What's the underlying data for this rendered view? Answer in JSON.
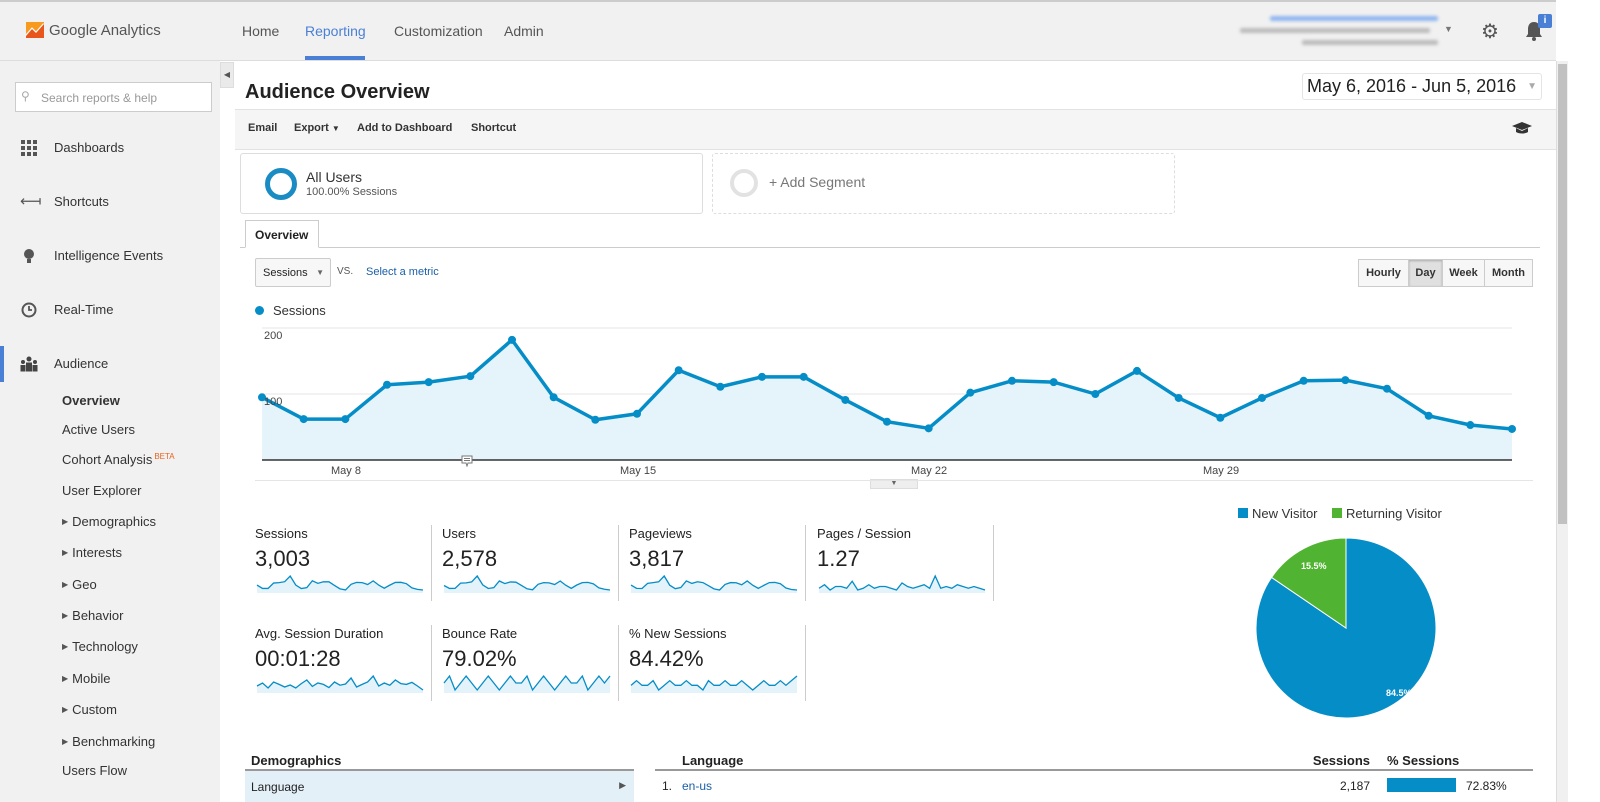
{
  "brand": {
    "name": "Google Analytics"
  },
  "nav": {
    "items": [
      "Home",
      "Reporting",
      "Customization",
      "Admin"
    ],
    "active": "Reporting",
    "accent": "#4a7fd6"
  },
  "header_icons": {
    "settings": "gear-icon",
    "notifications": "bell-icon",
    "badge": "i"
  },
  "sidebar": {
    "search_placeholder": "Search reports & help",
    "items": [
      {
        "label": "Dashboards",
        "icon": "grid-icon"
      },
      {
        "label": "Shortcuts",
        "icon": "shortcut-arrow-icon"
      },
      {
        "label": "Intelligence Events",
        "icon": "lightbulb-icon"
      },
      {
        "label": "Real-Time",
        "icon": "clock-icon"
      },
      {
        "label": "Audience",
        "icon": "people-icon"
      }
    ],
    "sub_items": [
      {
        "label": "Overview",
        "active": true
      },
      {
        "label": "Active Users"
      },
      {
        "label": "Cohort Analysis",
        "badge": "BETA"
      },
      {
        "label": "User Explorer"
      },
      {
        "label": "Demographics",
        "expandable": true
      },
      {
        "label": "Interests",
        "expandable": true
      },
      {
        "label": "Geo",
        "expandable": true
      },
      {
        "label": "Behavior",
        "expandable": true
      },
      {
        "label": "Technology",
        "expandable": true
      },
      {
        "label": "Mobile",
        "expandable": true
      },
      {
        "label": "Custom",
        "expandable": true
      },
      {
        "label": "Benchmarking",
        "expandable": true
      },
      {
        "label": "Users Flow"
      }
    ]
  },
  "page": {
    "title": "Audience Overview",
    "date_range": "May 6, 2016 - Jun 5, 2016"
  },
  "toolbar": {
    "email": "Email",
    "export": "Export",
    "add_to_dashboard": "Add to Dashboard",
    "shortcut": "Shortcut"
  },
  "segments": {
    "all_users": "All Users",
    "all_users_sub": "100.00% Sessions",
    "add": "+ Add Segment"
  },
  "tabs": {
    "overview": "Overview"
  },
  "chart_controls": {
    "metric": "Sessions",
    "vs": "VS.",
    "select_metric": "Select a metric",
    "granularity": [
      "Hourly",
      "Day",
      "Week",
      "Month"
    ],
    "selected": "Day"
  },
  "chart_data": {
    "type": "area",
    "series": [
      {
        "name": "Sessions",
        "color": "#058dc7",
        "values": [
          95,
          62,
          62,
          114,
          118,
          127,
          182,
          95,
          61,
          70,
          136,
          111,
          126,
          126,
          91,
          58,
          48,
          102,
          120,
          118,
          100,
          135,
          94,
          64,
          94,
          120,
          121,
          108,
          67,
          53,
          47
        ]
      }
    ],
    "x_start": "May 6",
    "x_end": "Jun 5",
    "x_ticks": [
      "May 8",
      "May 15",
      "May 22",
      "May 29"
    ],
    "y_ticks": [
      "100",
      "200"
    ],
    "ylim": [
      0,
      200
    ],
    "grid": true,
    "legend": "top-left"
  },
  "metrics": [
    {
      "label": "Sessions",
      "value": "3,003",
      "spark": [
        95,
        62,
        62,
        114,
        118,
        127,
        182,
        95,
        61,
        70,
        136,
        111,
        126,
        126,
        91,
        58,
        48,
        102,
        120,
        118,
        100,
        135,
        94,
        64,
        94,
        120,
        121,
        108,
        67,
        53,
        47
      ]
    },
    {
      "label": "Users",
      "value": "2,578",
      "spark": [
        80,
        55,
        56,
        100,
        102,
        110,
        160,
        85,
        55,
        62,
        118,
        96,
        110,
        108,
        80,
        52,
        44,
        90,
        104,
        102,
        88,
        118,
        82,
        56,
        84,
        104,
        106,
        94,
        60,
        48,
        42
      ]
    },
    {
      "label": "Pageviews",
      "value": "3,817",
      "spark": [
        120,
        80,
        78,
        140,
        150,
        160,
        230,
        118,
        76,
        90,
        170,
        140,
        160,
        150,
        112,
        74,
        60,
        128,
        150,
        148,
        124,
        170,
        118,
        80,
        116,
        150,
        152,
        136,
        84,
        66,
        60
      ]
    },
    {
      "label": "Pages / Session",
      "value": "1.27",
      "spark": [
        1.26,
        1.28,
        1.25,
        1.27,
        1.27,
        1.26,
        1.3,
        1.25,
        1.26,
        1.28,
        1.26,
        1.27,
        1.27,
        1.26,
        1.25,
        1.29,
        1.27,
        1.26,
        1.27,
        1.28,
        1.26,
        1.33,
        1.26,
        1.27,
        1.26,
        1.28,
        1.27,
        1.26,
        1.27,
        1.26,
        1.25
      ]
    },
    {
      "label": "Avg. Session Duration",
      "value": "00:01:28",
      "spark": [
        80,
        95,
        70,
        100,
        88,
        75,
        85,
        70,
        92,
        110,
        78,
        95,
        88,
        72,
        100,
        84,
        90,
        120,
        75,
        88,
        100,
        130,
        80,
        95,
        84,
        110,
        92,
        88,
        98,
        80,
        60
      ]
    },
    {
      "label": "Bounce Rate",
      "value": "79.02%",
      "spark": [
        79,
        80,
        78,
        79,
        80,
        79,
        78,
        79,
        80,
        79,
        78,
        79,
        80,
        79,
        79,
        80,
        78,
        79,
        80,
        79,
        78,
        79,
        80,
        79,
        79,
        80,
        78,
        79,
        80,
        79,
        80
      ]
    },
    {
      "label": "% New Sessions",
      "value": "84.42%",
      "spark": [
        84,
        85,
        84,
        84,
        85,
        83,
        84,
        85,
        84,
        84,
        85,
        84,
        84,
        83,
        85,
        84,
        84,
        85,
        84,
        84,
        85,
        84,
        83,
        84,
        85,
        84,
        84,
        85,
        84,
        85,
        86
      ]
    }
  ],
  "pie": {
    "legend": [
      {
        "label": "New Visitor",
        "color": "#058dc7"
      },
      {
        "label": "Returning Visitor",
        "color": "#50b432"
      }
    ],
    "slices": [
      {
        "label": "New Visitor",
        "value": 84.5,
        "text": "84.5%"
      },
      {
        "label": "Returning Visitor",
        "value": 15.5,
        "text": "15.5%"
      }
    ]
  },
  "demographics": {
    "heading": "Demographics",
    "selected": "Language",
    "table": {
      "headers": [
        "Language",
        "Sessions",
        "% Sessions"
      ],
      "rows": [
        {
          "rank": "1.",
          "name": "en-us",
          "sessions": "2,187",
          "pct": "72.83%",
          "pct_value": 72.83
        }
      ]
    }
  }
}
